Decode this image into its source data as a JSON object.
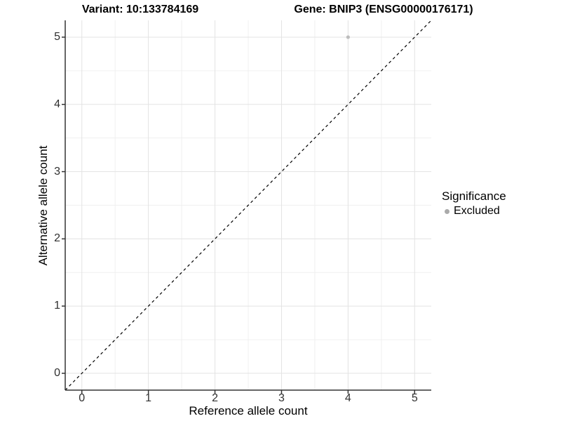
{
  "titles": {
    "variant": "Variant: 10:133784169",
    "gene": "Gene: BNIP3 (ENSG00000176171)"
  },
  "legend": {
    "title": "Significance",
    "items": [
      {
        "label": "Excluded",
        "color": "#aaaaaa"
      }
    ]
  },
  "chart_data": {
    "type": "scatter",
    "title": "Variant: 10:133784169   Gene: BNIP3 (ENSG00000176171)",
    "xlabel": "Reference allele count",
    "ylabel": "Alternative allele count",
    "xlim": [
      -0.25,
      5.25
    ],
    "ylim": [
      -0.25,
      5.25
    ],
    "x_ticks": [
      0,
      1,
      2,
      3,
      4,
      5
    ],
    "y_ticks": [
      0,
      1,
      2,
      3,
      4,
      5
    ],
    "minor_gridlines": [
      0.5,
      1.5,
      2.5,
      3.5,
      4.5
    ],
    "grid": "major+minor",
    "legend_position": "right",
    "series": [
      {
        "name": "Excluded",
        "color": "#bdbdbd",
        "points": [
          {
            "x": 4,
            "y": 5
          }
        ]
      }
    ],
    "reference_line": {
      "type": "identity",
      "style": "dashed",
      "color": "#000000",
      "from": [
        -0.25,
        -0.25
      ],
      "to": [
        5.25,
        5.25
      ]
    }
  },
  "colors": {
    "panel_background": "#ffffff",
    "major_grid": "#e3e3e3",
    "minor_grid": "#f0f0f0",
    "axis_line": "#333333",
    "tick_text": "#303030",
    "point": "#bdbdbd",
    "legend_key": "#aaaaaa"
  }
}
